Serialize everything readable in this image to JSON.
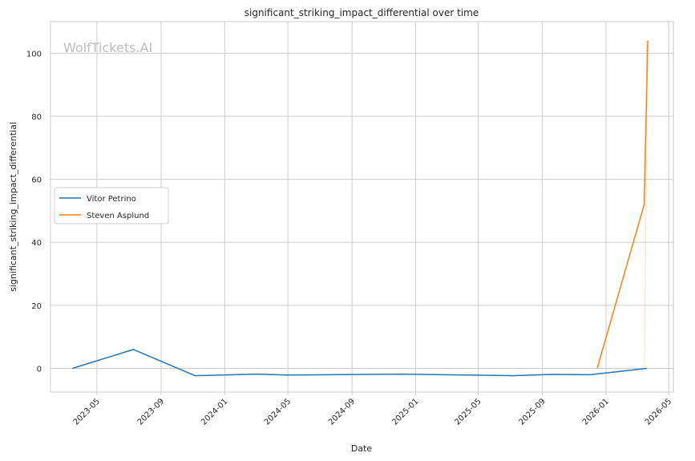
{
  "watermark": "WolfTickets.AI",
  "chart_data": {
    "type": "line",
    "title": "significant_striking_impact_differential over time",
    "xlabel": "Date",
    "ylabel": "significant_striking_impact_differential",
    "x_ticks": [
      "2023-05",
      "2023-09",
      "2024-01",
      "2024-05",
      "2024-09",
      "2025-01",
      "2025-05",
      "2025-09",
      "2026-01",
      "2026-05"
    ],
    "y_ticks": [
      0,
      20,
      40,
      60,
      80,
      100
    ],
    "xlim": [
      "2023-02-01",
      "2026-05-10"
    ],
    "ylim": [
      -7.5,
      110
    ],
    "grid": true,
    "legend_position": "center-left",
    "series": [
      {
        "name": "Vitor Petrino",
        "color": "#1f77b4",
        "x": [
          "2023-03-15",
          "2023-07-10",
          "2023-11-05",
          "2024-03-02",
          "2024-04-30",
          "2024-12-05",
          "2025-07-05",
          "2025-09-20",
          "2025-12-01",
          "2026-03-20"
        ],
        "y": [
          0,
          6,
          -2.3,
          -1.8,
          -2.1,
          -1.8,
          -2.3,
          -1.9,
          -2.0,
          0
        ]
      },
      {
        "name": "Steven Asplund",
        "color": "#ff7f0e",
        "x": [
          "2025-12-15",
          "2026-03-15",
          "2026-03-22"
        ],
        "y": [
          0,
          52,
          104
        ]
      }
    ]
  }
}
